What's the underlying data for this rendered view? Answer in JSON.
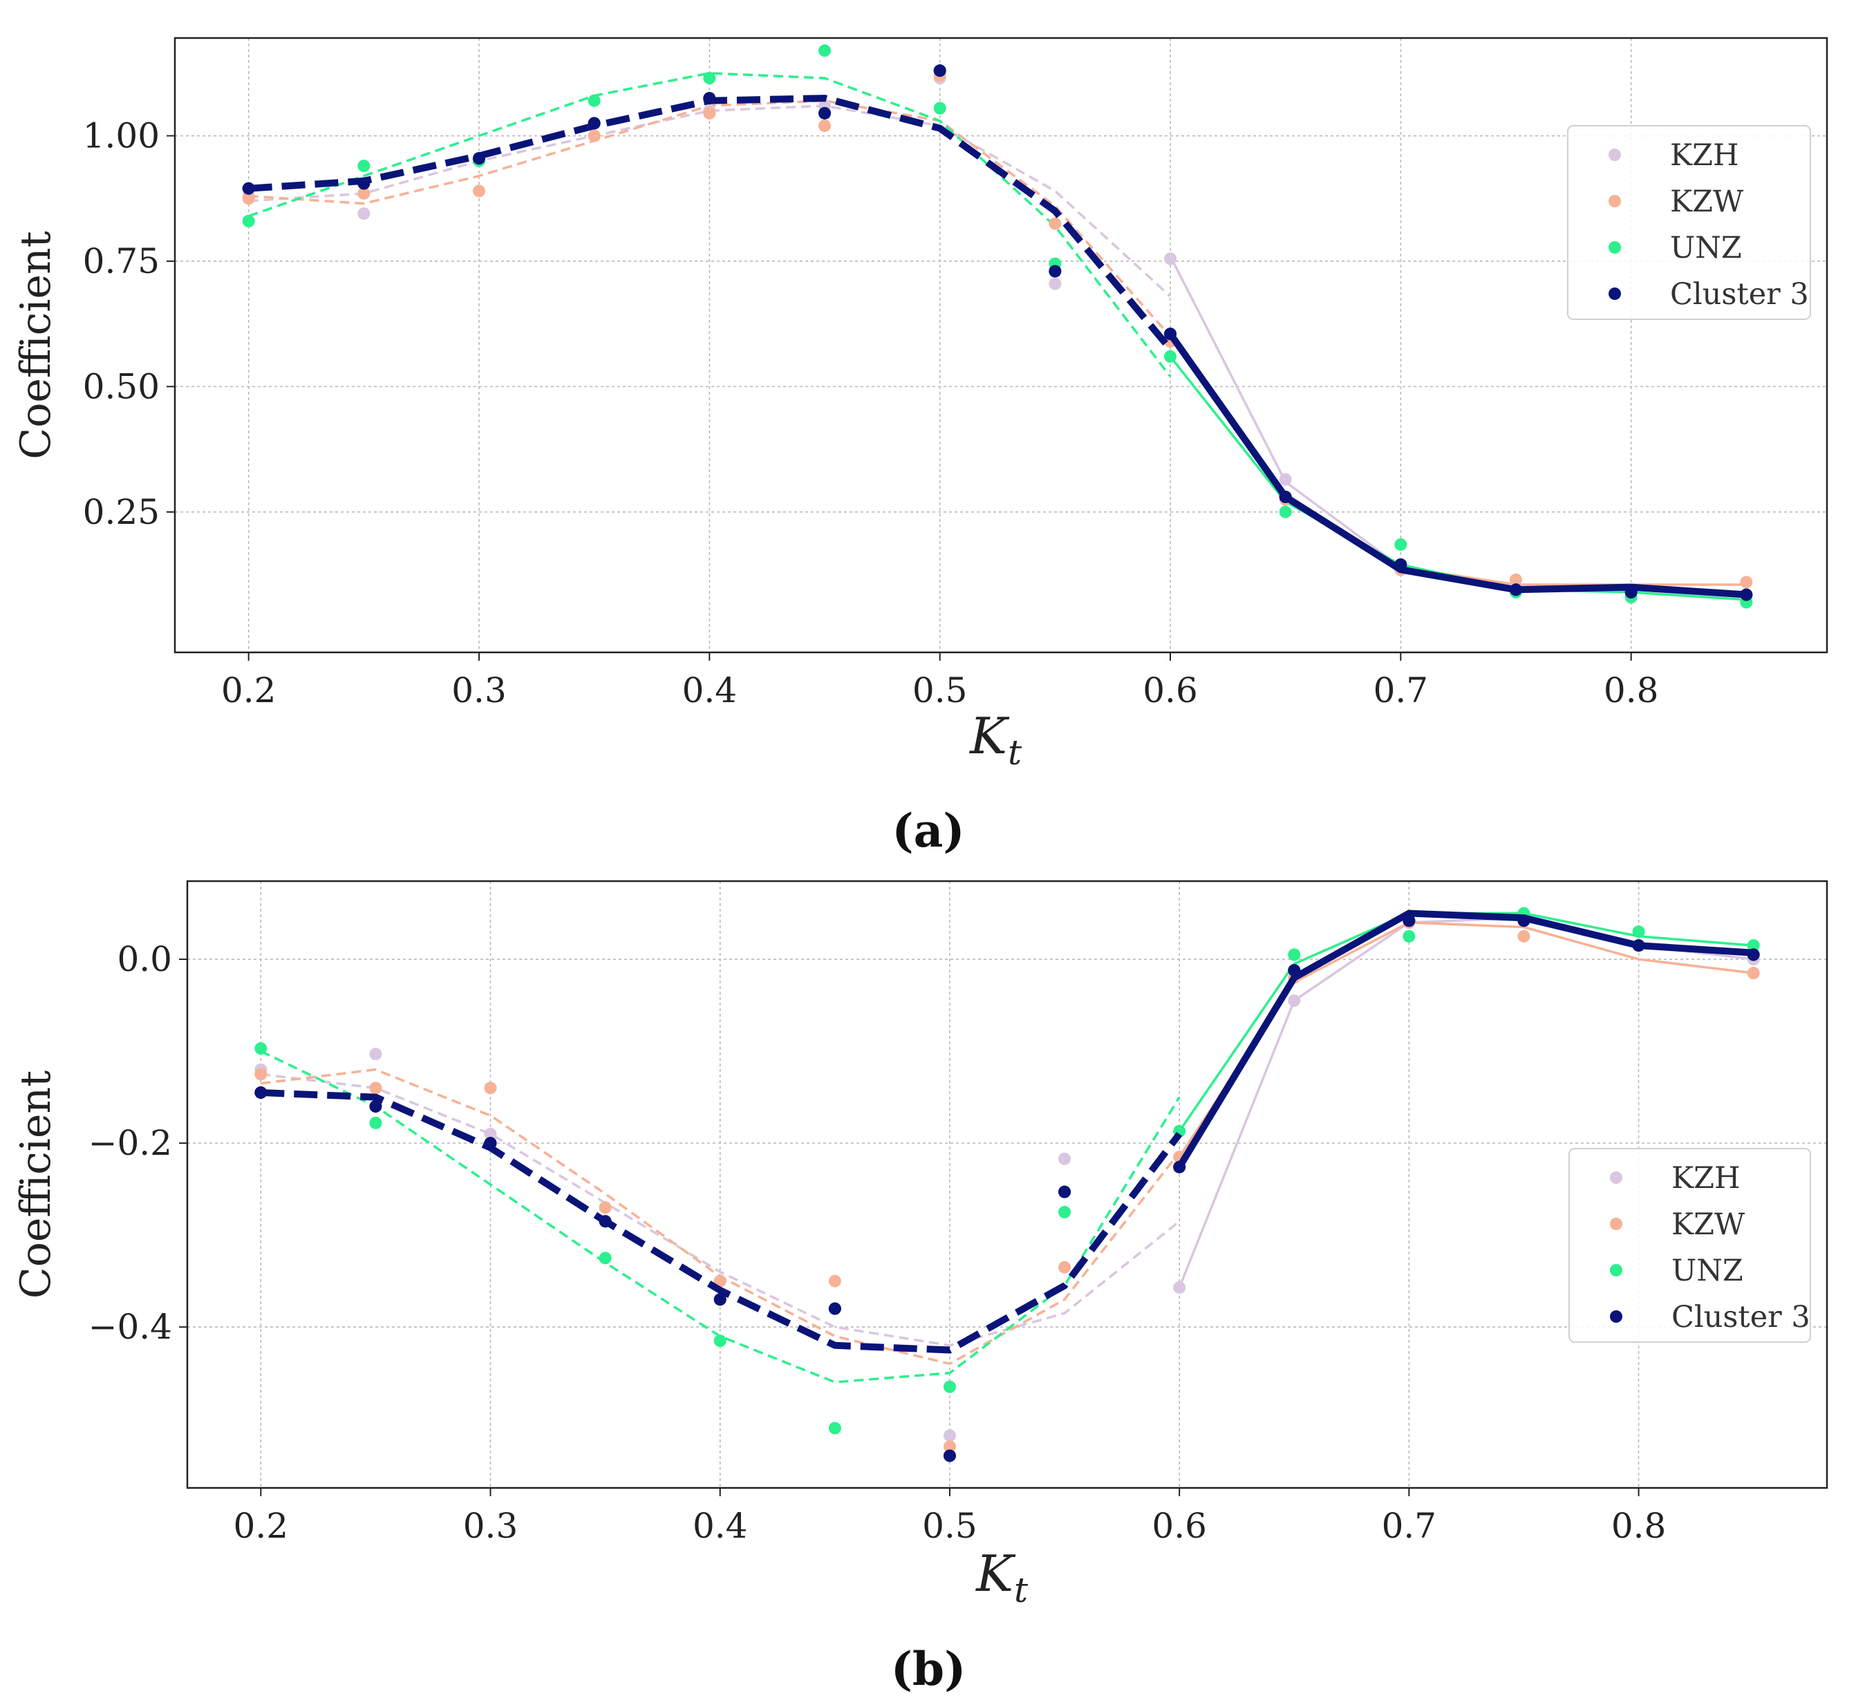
{
  "chart_data": [
    {
      "type": "line",
      "caption": "(a)",
      "xlabel_symbol": "K",
      "xlabel_subscript": "t",
      "ylabel": "Coefficient",
      "xlim": [
        0.168,
        0.885
      ],
      "ylim": [
        -0.03,
        1.195
      ],
      "xticks": [
        0.2,
        0.3,
        0.4,
        0.5,
        0.6,
        0.7,
        0.8
      ],
      "xtick_labels": [
        "0.2",
        "0.3",
        "0.4",
        "0.5",
        "0.6",
        "0.7",
        "0.8"
      ],
      "yticks": [
        0.25,
        0.5,
        0.75,
        1.0
      ],
      "ytick_labels": [
        "0.25",
        "0.50",
        "0.75",
        "1.00"
      ],
      "grid": true,
      "legend_position": "right",
      "series": [
        {
          "name": "KZH",
          "color": "#d9c6e0",
          "points": [
            [
              0.2,
              0.88
            ],
            [
              0.25,
              0.845
            ],
            [
              0.3,
              0.955
            ],
            [
              0.35,
              1.0
            ],
            [
              0.4,
              1.05
            ],
            [
              0.45,
              1.06
            ],
            [
              0.5,
              1.115
            ],
            [
              0.55,
              0.705
            ],
            [
              0.6,
              0.755
            ],
            [
              0.65,
              0.315
            ],
            [
              0.7,
              0.135
            ],
            [
              0.75,
              0.1
            ],
            [
              0.8,
              0.09
            ],
            [
              0.85,
              0.08
            ]
          ],
          "fit_dashed": [
            [
              0.2,
              0.87
            ],
            [
              0.25,
              0.885
            ],
            [
              0.3,
              0.95
            ],
            [
              0.35,
              1.0
            ],
            [
              0.4,
              1.05
            ],
            [
              0.45,
              1.06
            ],
            [
              0.5,
              1.02
            ],
            [
              0.55,
              0.89
            ],
            [
              0.6,
              0.68
            ]
          ],
          "fit_solid": [
            [
              0.6,
              0.76
            ],
            [
              0.65,
              0.31
            ],
            [
              0.7,
              0.14
            ],
            [
              0.75,
              0.1
            ],
            [
              0.8,
              0.095
            ],
            [
              0.85,
              0.085
            ]
          ]
        },
        {
          "name": "KZW",
          "color": "#f7b194",
          "points": [
            [
              0.2,
              0.875
            ],
            [
              0.25,
              0.885
            ],
            [
              0.3,
              0.89
            ],
            [
              0.35,
              1.0
            ],
            [
              0.4,
              1.045
            ],
            [
              0.45,
              1.02
            ],
            [
              0.5,
              1.12
            ],
            [
              0.55,
              0.825
            ],
            [
              0.6,
              0.59
            ],
            [
              0.65,
              0.275
            ],
            [
              0.7,
              0.135
            ],
            [
              0.75,
              0.115
            ],
            [
              0.8,
              0.09
            ],
            [
              0.85,
              0.11
            ]
          ],
          "fit_dashed": [
            [
              0.2,
              0.88
            ],
            [
              0.25,
              0.865
            ],
            [
              0.3,
              0.92
            ],
            [
              0.35,
              0.99
            ],
            [
              0.4,
              1.06
            ],
            [
              0.45,
              1.07
            ],
            [
              0.5,
              1.03
            ],
            [
              0.55,
              0.86
            ],
            [
              0.6,
              0.6
            ]
          ],
          "fit_solid": [
            [
              0.6,
              0.6
            ],
            [
              0.65,
              0.28
            ],
            [
              0.7,
              0.14
            ],
            [
              0.75,
              0.105
            ],
            [
              0.8,
              0.105
            ],
            [
              0.85,
              0.105
            ]
          ]
        },
        {
          "name": "UNZ",
          "color": "#2bf08d",
          "points": [
            [
              0.2,
              0.83
            ],
            [
              0.25,
              0.94
            ],
            [
              0.3,
              0.95
            ],
            [
              0.35,
              1.07
            ],
            [
              0.4,
              1.115
            ],
            [
              0.45,
              1.17
            ],
            [
              0.5,
              1.055
            ],
            [
              0.55,
              0.745
            ],
            [
              0.6,
              0.56
            ],
            [
              0.65,
              0.25
            ],
            [
              0.7,
              0.185
            ],
            [
              0.75,
              0.09
            ],
            [
              0.8,
              0.08
            ],
            [
              0.85,
              0.07
            ]
          ],
          "fit_dashed": [
            [
              0.2,
              0.84
            ],
            [
              0.25,
              0.92
            ],
            [
              0.3,
              1.0
            ],
            [
              0.35,
              1.08
            ],
            [
              0.4,
              1.125
            ],
            [
              0.45,
              1.115
            ],
            [
              0.5,
              1.03
            ],
            [
              0.55,
              0.82
            ],
            [
              0.6,
              0.52
            ]
          ],
          "fit_solid": [
            [
              0.6,
              0.56
            ],
            [
              0.65,
              0.27
            ],
            [
              0.7,
              0.145
            ],
            [
              0.75,
              0.095
            ],
            [
              0.8,
              0.09
            ],
            [
              0.85,
              0.075
            ]
          ]
        },
        {
          "name": "Cluster 3",
          "color": "#0a1478",
          "points": [
            [
              0.2,
              0.895
            ],
            [
              0.25,
              0.905
            ],
            [
              0.3,
              0.955
            ],
            [
              0.35,
              1.025
            ],
            [
              0.4,
              1.075
            ],
            [
              0.45,
              1.045
            ],
            [
              0.5,
              1.13
            ],
            [
              0.55,
              0.73
            ],
            [
              0.6,
              0.605
            ],
            [
              0.65,
              0.28
            ],
            [
              0.7,
              0.145
            ],
            [
              0.75,
              0.095
            ],
            [
              0.8,
              0.09
            ],
            [
              0.85,
              0.085
            ]
          ],
          "fit_dashed": [
            [
              0.2,
              0.895
            ],
            [
              0.25,
              0.91
            ],
            [
              0.3,
              0.96
            ],
            [
              0.35,
              1.02
            ],
            [
              0.4,
              1.07
            ],
            [
              0.45,
              1.075
            ],
            [
              0.5,
              1.015
            ],
            [
              0.55,
              0.85
            ],
            [
              0.6,
              0.575
            ]
          ],
          "fit_solid": [
            [
              0.6,
              0.605
            ],
            [
              0.65,
              0.28
            ],
            [
              0.7,
              0.135
            ],
            [
              0.75,
              0.095
            ],
            [
              0.8,
              0.1
            ],
            [
              0.85,
              0.085
            ]
          ]
        }
      ]
    },
    {
      "type": "line",
      "caption": "(b)",
      "xlabel_symbol": "K",
      "xlabel_subscript": "t",
      "ylabel": "Coefficient",
      "xlim": [
        0.168,
        0.882
      ],
      "ylim": [
        -0.575,
        0.085
      ],
      "xticks": [
        0.2,
        0.3,
        0.4,
        0.5,
        0.6,
        0.7,
        0.8
      ],
      "xtick_labels": [
        "0.2",
        "0.3",
        "0.4",
        "0.5",
        "0.6",
        "0.7",
        "0.8"
      ],
      "yticks": [
        -0.4,
        -0.2,
        0.0
      ],
      "ytick_labels": [
        "−0.4",
        "−0.2",
        "0.0"
      ],
      "grid": true,
      "legend_position": "right",
      "series": [
        {
          "name": "KZH",
          "color": "#d9c6e0",
          "points": [
            [
              0.2,
              -0.12
            ],
            [
              0.25,
              -0.103
            ],
            [
              0.3,
              -0.19
            ],
            [
              0.35,
              -0.27
            ],
            [
              0.4,
              -0.35
            ],
            [
              0.45,
              -0.38
            ],
            [
              0.5,
              -0.518
            ],
            [
              0.55,
              -0.217
            ],
            [
              0.6,
              -0.357
            ],
            [
              0.65,
              -0.045
            ],
            [
              0.7,
              0.04
            ],
            [
              0.75,
              0.045
            ],
            [
              0.8,
              0.015
            ],
            [
              0.85,
              0.0
            ]
          ],
          "fit_dashed": [
            [
              0.2,
              -0.125
            ],
            [
              0.25,
              -0.14
            ],
            [
              0.3,
              -0.19
            ],
            [
              0.35,
              -0.265
            ],
            [
              0.4,
              -0.34
            ],
            [
              0.45,
              -0.4
            ],
            [
              0.5,
              -0.42
            ],
            [
              0.55,
              -0.385
            ],
            [
              0.6,
              -0.285
            ]
          ],
          "fit_solid": [
            [
              0.6,
              -0.357
            ],
            [
              0.65,
              -0.045
            ],
            [
              0.7,
              0.04
            ],
            [
              0.75,
              0.045
            ],
            [
              0.8,
              0.015
            ],
            [
              0.85,
              0.0
            ]
          ]
        },
        {
          "name": "KZW",
          "color": "#f7b194",
          "points": [
            [
              0.2,
              -0.125
            ],
            [
              0.25,
              -0.14
            ],
            [
              0.3,
              -0.14
            ],
            [
              0.35,
              -0.27
            ],
            [
              0.4,
              -0.35
            ],
            [
              0.45,
              -0.35
            ],
            [
              0.5,
              -0.53
            ],
            [
              0.55,
              -0.335
            ],
            [
              0.6,
              -0.215
            ],
            [
              0.65,
              -0.02
            ],
            [
              0.7,
              0.04
            ],
            [
              0.75,
              0.025
            ],
            [
              0.8,
              0.015
            ],
            [
              0.85,
              -0.015
            ]
          ],
          "fit_dashed": [
            [
              0.2,
              -0.135
            ],
            [
              0.25,
              -0.12
            ],
            [
              0.3,
              -0.17
            ],
            [
              0.35,
              -0.255
            ],
            [
              0.4,
              -0.345
            ],
            [
              0.45,
              -0.41
            ],
            [
              0.5,
              -0.44
            ],
            [
              0.55,
              -0.37
            ],
            [
              0.6,
              -0.21
            ]
          ],
          "fit_solid": [
            [
              0.6,
              -0.215
            ],
            [
              0.65,
              -0.025
            ],
            [
              0.7,
              0.04
            ],
            [
              0.75,
              0.035
            ],
            [
              0.8,
              0.0
            ],
            [
              0.85,
              -0.015
            ]
          ]
        },
        {
          "name": "UNZ",
          "color": "#2bf08d",
          "points": [
            [
              0.2,
              -0.097
            ],
            [
              0.25,
              -0.178
            ],
            [
              0.3,
              -0.2
            ],
            [
              0.35,
              -0.325
            ],
            [
              0.4,
              -0.415
            ],
            [
              0.45,
              -0.51
            ],
            [
              0.5,
              -0.465
            ],
            [
              0.55,
              -0.275
            ],
            [
              0.6,
              -0.187
            ],
            [
              0.65,
              0.005
            ],
            [
              0.7,
              0.025
            ],
            [
              0.75,
              0.05
            ],
            [
              0.8,
              0.03
            ],
            [
              0.85,
              0.015
            ]
          ],
          "fit_dashed": [
            [
              0.2,
              -0.1
            ],
            [
              0.25,
              -0.16
            ],
            [
              0.3,
              -0.245
            ],
            [
              0.35,
              -0.33
            ],
            [
              0.4,
              -0.41
            ],
            [
              0.45,
              -0.46
            ],
            [
              0.5,
              -0.45
            ],
            [
              0.55,
              -0.355
            ],
            [
              0.6,
              -0.15
            ]
          ],
          "fit_solid": [
            [
              0.6,
              -0.187
            ],
            [
              0.65,
              -0.005
            ],
            [
              0.7,
              0.05
            ],
            [
              0.75,
              0.05
            ],
            [
              0.8,
              0.025
            ],
            [
              0.85,
              0.015
            ]
          ]
        },
        {
          "name": "Cluster 3",
          "color": "#0a1478",
          "points": [
            [
              0.2,
              -0.145
            ],
            [
              0.25,
              -0.16
            ],
            [
              0.3,
              -0.2
            ],
            [
              0.35,
              -0.285
            ],
            [
              0.4,
              -0.37
            ],
            [
              0.45,
              -0.38
            ],
            [
              0.5,
              -0.54
            ],
            [
              0.55,
              -0.253
            ],
            [
              0.6,
              -0.226
            ],
            [
              0.65,
              -0.012
            ],
            [
              0.7,
              0.042
            ],
            [
              0.75,
              0.042
            ],
            [
              0.8,
              0.015
            ],
            [
              0.85,
              0.005
            ]
          ],
          "fit_dashed": [
            [
              0.2,
              -0.145
            ],
            [
              0.25,
              -0.15
            ],
            [
              0.3,
              -0.205
            ],
            [
              0.35,
              -0.285
            ],
            [
              0.4,
              -0.36
            ],
            [
              0.45,
              -0.42
            ],
            [
              0.5,
              -0.425
            ],
            [
              0.55,
              -0.355
            ],
            [
              0.6,
              -0.19
            ]
          ],
          "fit_solid": [
            [
              0.6,
              -0.226
            ],
            [
              0.65,
              -0.02
            ],
            [
              0.7,
              0.05
            ],
            [
              0.75,
              0.045
            ],
            [
              0.8,
              0.015
            ],
            [
              0.85,
              0.007
            ]
          ]
        }
      ]
    }
  ]
}
